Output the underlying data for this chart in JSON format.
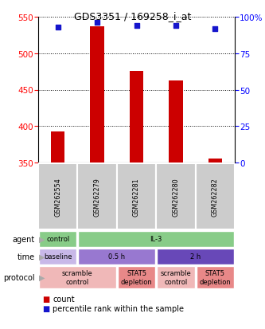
{
  "title": "GDS3351 / 169258_i_at",
  "samples": [
    "GSM262554",
    "GSM262279",
    "GSM262281",
    "GSM262280",
    "GSM262282"
  ],
  "bar_values": [
    393,
    537,
    476,
    463,
    355
  ],
  "bar_bottom": 350,
  "percentile_values": [
    93,
    96,
    94,
    94,
    92
  ],
  "ylim_left": [
    350,
    550
  ],
  "ylim_right": [
    0,
    100
  ],
  "yticks_left": [
    350,
    400,
    450,
    500,
    550
  ],
  "yticks_right": [
    0,
    25,
    50,
    75,
    100
  ],
  "ytick_labels_right": [
    "0",
    "25",
    "50",
    "75",
    "100%"
  ],
  "bar_color": "#cc0000",
  "percentile_color": "#1515cc",
  "sample_bg_color": "#cccccc",
  "agent_control_color": "#88cc88",
  "agent_il3_color": "#88cc88",
  "time_baseline_color": "#c0b0e0",
  "time_05h_color": "#9878cc",
  "time_2h_color": "#6848b0",
  "protocol_scramble_color": "#f0b8b8",
  "protocol_stat5_color": "#e88888",
  "legend_count_color": "#cc0000",
  "legend_pct_color": "#1515cc",
  "arrow_color": "#aaaaaa",
  "agent_cells": [
    {
      "text": "control",
      "span": 1,
      "color": "#88cc88"
    },
    {
      "text": "IL-3",
      "span": 4,
      "color": "#88cc88"
    }
  ],
  "time_cells": [
    {
      "text": "baseline",
      "span": 1,
      "color": "#c8b8e8"
    },
    {
      "text": "0.5 h",
      "span": 2,
      "color": "#9878d0"
    },
    {
      "text": "2 h",
      "span": 2,
      "color": "#6848b8"
    }
  ],
  "protocol_cells": [
    {
      "text": "scramble\ncontrol",
      "span": 2,
      "color": "#f0b8b8"
    },
    {
      "text": "STAT5\ndepletion",
      "span": 1,
      "color": "#e88888"
    },
    {
      "text": "scramble\ncontrol",
      "span": 1,
      "color": "#f0b8b8"
    },
    {
      "text": "STAT5\ndepletion",
      "span": 1,
      "color": "#e88888"
    }
  ]
}
